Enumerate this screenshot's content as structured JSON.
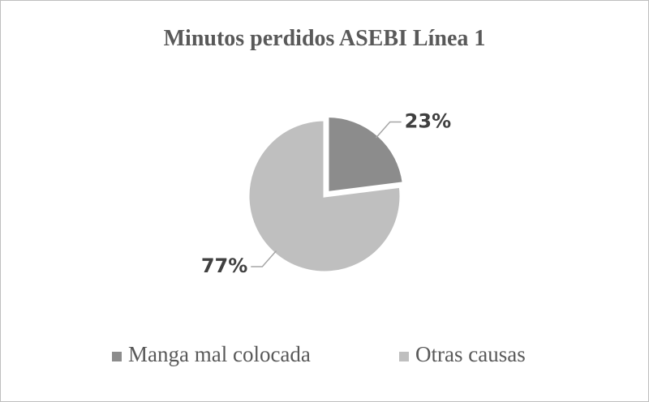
{
  "chart_data": {
    "type": "pie",
    "title": "Minutos perdidos ASEBI Línea 1",
    "categories": [
      "Manga mal colocada",
      "Otras causas"
    ],
    "values": [
      23,
      77
    ],
    "value_labels": [
      "23%",
      "77%"
    ],
    "colors": [
      "#8c8c8c",
      "#bfbfbf"
    ],
    "legend": "bottom"
  }
}
